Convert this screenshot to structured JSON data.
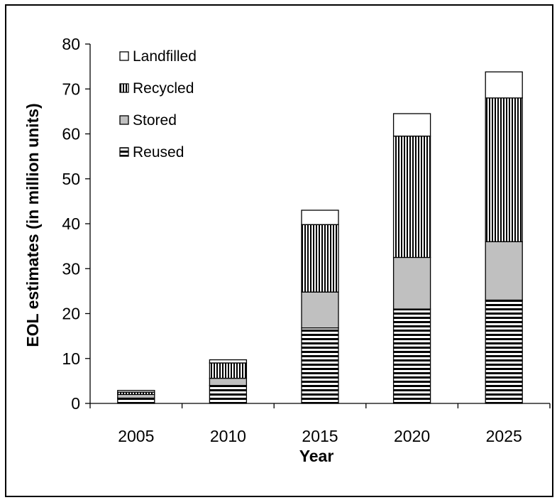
{
  "chart_data": {
    "type": "bar",
    "stacked": true,
    "title": "",
    "xlabel": "Year",
    "ylabel": "EOL estimates (in million units)",
    "ylim": [
      0,
      80
    ],
    "yticks": [
      0,
      10,
      20,
      30,
      40,
      50,
      60,
      70,
      80
    ],
    "categories": [
      "2005",
      "2010",
      "2015",
      "2020",
      "2025"
    ],
    "series": [
      {
        "name": "Reused",
        "pattern": "horizontal-stripes",
        "values": [
          1.2,
          4.0,
          16.8,
          21.0,
          23.0
        ]
      },
      {
        "name": "Stored",
        "pattern": "solid-gray",
        "values": [
          0.8,
          1.6,
          8.0,
          11.5,
          13.0
        ]
      },
      {
        "name": "Recycled",
        "pattern": "vertical-stripes",
        "values": [
          0.5,
          3.4,
          15.0,
          27.0,
          32.0
        ]
      },
      {
        "name": "Landfilled",
        "pattern": "white",
        "values": [
          0.4,
          0.7,
          3.2,
          5.0,
          5.8
        ]
      }
    ],
    "legend_position": "top-left",
    "legend_order": [
      "Landfilled",
      "Recycled",
      "Stored",
      "Reused"
    ],
    "grid": false,
    "colors": {
      "stored_fill": "#c0c0c0",
      "stroke": "#000000",
      "background": "#ffffff"
    }
  }
}
